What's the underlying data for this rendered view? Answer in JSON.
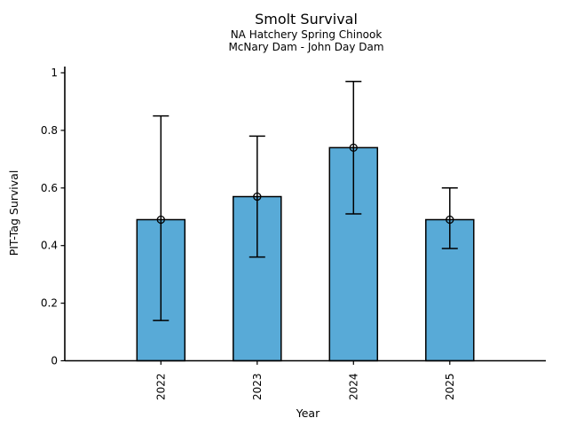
{
  "figure": {
    "background": "#ffffff",
    "text_color": "#000000"
  },
  "chart_data": {
    "type": "bar",
    "title": "Smolt Survival",
    "subtitle_line1": "NA Hatchery Spring Chinook",
    "subtitle_line2": "McNary Dam - John Day Dam",
    "xlabel": "Year",
    "ylabel": "PIT-Tag Survival",
    "categories": [
      "2022",
      "2023",
      "2024",
      "2025"
    ],
    "values": [
      0.49,
      0.57,
      0.74,
      0.49
    ],
    "error_low": [
      0.14,
      0.36,
      0.51,
      0.39
    ],
    "error_high": [
      0.85,
      0.78,
      0.97,
      0.6
    ],
    "ylim": [
      0,
      1
    ],
    "ytick_labels": [
      "0",
      "0.2",
      "0.4",
      "0.6",
      "0.8",
      "1"
    ],
    "xtick_rotation_deg": 90,
    "grid": false,
    "legend": false,
    "bar_color": "#58aad7",
    "bar_edge_color": "#000000",
    "error_bar_color": "#000000",
    "marker": "open-circle",
    "marker_edge_color": "#000000"
  }
}
